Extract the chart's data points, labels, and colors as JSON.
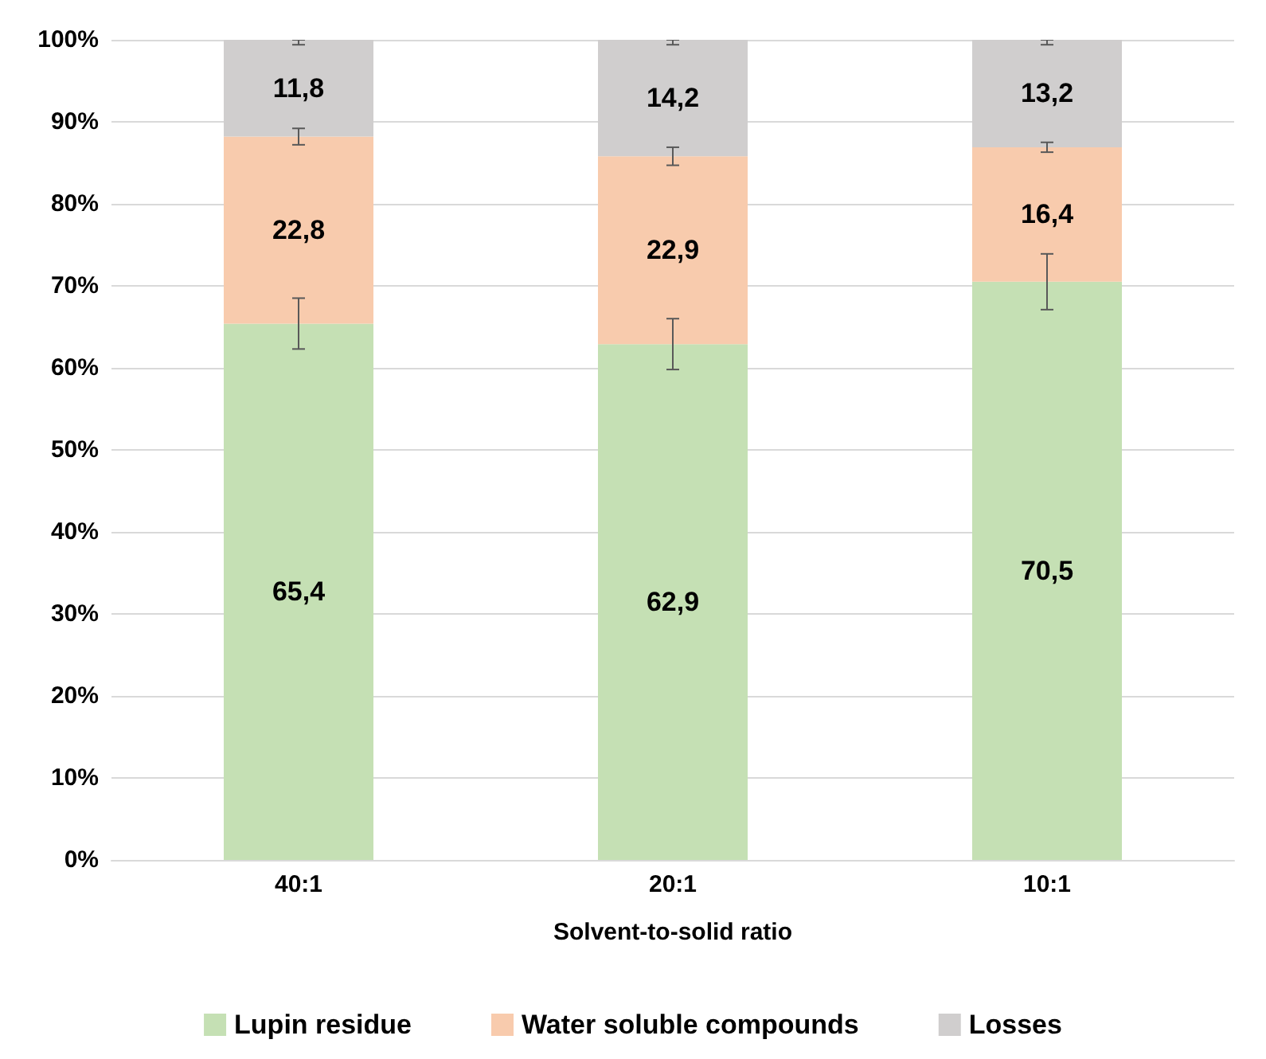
{
  "chart_data": {
    "type": "bar",
    "stacked": true,
    "xlabel": "Solvent-to-solid ratio",
    "categories": [
      "40:1",
      "20:1",
      "10:1"
    ],
    "series": [
      {
        "name": "Lupin residue",
        "color": "#c5e0b4",
        "values": [
          65.4,
          62.9,
          70.5
        ],
        "value_labels": [
          "65,4",
          "62,9",
          "70,5"
        ],
        "errors": [
          3.1,
          3.1,
          3.4
        ]
      },
      {
        "name": "Water soluble compounds",
        "color": "#f8cbad",
        "values": [
          22.8,
          22.9,
          16.4
        ],
        "value_labels": [
          "22,8",
          "22,9",
          "16,4"
        ],
        "errors": [
          1.0,
          1.1,
          0.6
        ]
      },
      {
        "name": "Losses",
        "color": "#d0cece",
        "values": [
          11.8,
          14.2,
          13.2
        ],
        "value_labels": [
          "11,8",
          "14,2",
          "13,2"
        ],
        "errors": [
          [
            99.4,
            100
          ],
          [
            99.4,
            100
          ],
          [
            99.4,
            100
          ]
        ]
      }
    ],
    "ylim": [
      0,
      100
    ],
    "yticks": [
      {
        "value": 0,
        "label": "0%"
      },
      {
        "value": 10,
        "label": "10%"
      },
      {
        "value": 20,
        "label": "20%"
      },
      {
        "value": 30,
        "label": "30%"
      },
      {
        "value": 40,
        "label": "40%"
      },
      {
        "value": 50,
        "label": "50%"
      },
      {
        "value": 60,
        "label": "60%"
      },
      {
        "value": 70,
        "label": "70%"
      },
      {
        "value": 80,
        "label": "80%"
      },
      {
        "value": 90,
        "label": "90%"
      },
      {
        "value": 100,
        "label": "100%"
      }
    ],
    "grid": "y",
    "legend": "bottom"
  }
}
